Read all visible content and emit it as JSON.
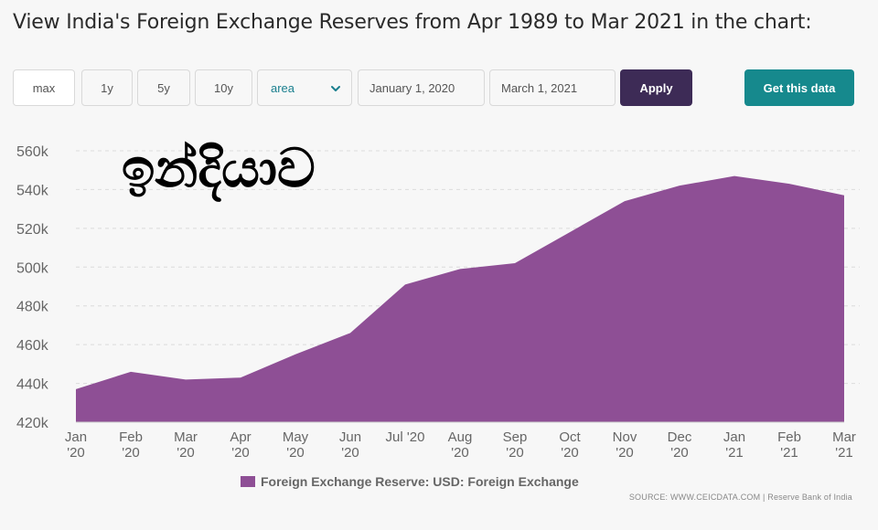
{
  "title": "View India's Foreign Exchange Reserves from Apr 1989 to Mar 2021 in the chart:",
  "toolbar": {
    "range_buttons": [
      "max",
      "1y",
      "5y",
      "10y"
    ],
    "chart_type": "area",
    "start_date": "January 1, 2020",
    "end_date": "March 1, 2021",
    "apply_label": "Apply",
    "get_data_label": "Get this data"
  },
  "overlay_text": "ඉන්දියාව",
  "legend": "Foreign Exchange Reserve: USD: Foreign Exchange",
  "source": "SOURCE: WWW.CEICDATA.COM | Reserve Bank of India",
  "colors": {
    "area": "#8e4f95",
    "apply": "#3d2b56",
    "get_data": "#16898d",
    "select_text": "#1a7f8e"
  },
  "icons": {
    "select_chevron": "chevron-down-icon"
  },
  "chart_data": {
    "type": "area",
    "x": [
      "Jan '20",
      "Feb '20",
      "Mar '20",
      "Apr '20",
      "May '20",
      "Jun '20",
      "Jul '20",
      "Aug '20",
      "Sep '20",
      "Oct '20",
      "Nov '20",
      "Dec '20",
      "Jan '21",
      "Feb '21",
      "Mar '21"
    ],
    "series": [
      {
        "name": "Foreign Exchange Reserve: USD: Foreign Exchange",
        "values": [
          437000,
          446000,
          442000,
          443000,
          455000,
          466000,
          491000,
          499000,
          502000,
          518000,
          534000,
          542000,
          547000,
          543000,
          537000
        ]
      }
    ],
    "x_tick_labels": [
      [
        "Jan",
        "'20"
      ],
      [
        "Feb",
        "'20"
      ],
      [
        "Mar",
        "'20"
      ],
      [
        "Apr",
        "'20"
      ],
      [
        "May",
        "'20"
      ],
      [
        "Jun",
        "'20"
      ],
      [
        "Jul '20",
        ""
      ],
      [
        "Aug",
        "'20"
      ],
      [
        "Sep",
        "'20"
      ],
      [
        "Oct",
        "'20"
      ],
      [
        "Nov",
        "'20"
      ],
      [
        "Dec",
        "'20"
      ],
      [
        "Jan",
        "'21"
      ],
      [
        "Feb",
        "'21"
      ],
      [
        "Mar",
        "'21"
      ]
    ],
    "y_ticks": [
      420000,
      440000,
      460000,
      480000,
      500000,
      520000,
      540000,
      560000
    ],
    "y_tick_labels": [
      "420k",
      "440k",
      "460k",
      "480k",
      "500k",
      "520k",
      "540k",
      "560k"
    ],
    "ylim": [
      420000,
      560000
    ],
    "grid": true,
    "legend_position": "bottom"
  }
}
